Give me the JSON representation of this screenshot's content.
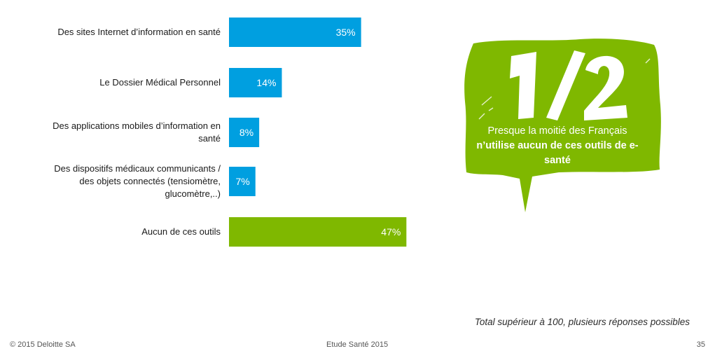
{
  "chart_data": {
    "type": "bar",
    "orientation": "horizontal",
    "categories": [
      "Des sites Internet d’information en santé",
      "Le Dossier Médical Personnel",
      "Des applications mobiles d’information en\nsanté",
      "Des dispositifs médicaux communicants /\ndes objets connectés (tensiomètre,\nglucomètre,..)",
      "Aucun de ces outils"
    ],
    "values": [
      35,
      14,
      8,
      7,
      47
    ],
    "value_labels": [
      "35%",
      "14%",
      "8%",
      "7%",
      "47%"
    ],
    "bar_colors": [
      "#009fe0",
      "#009fe0",
      "#009fe0",
      "#009fe0",
      "#7fb800"
    ],
    "xlim": [
      0,
      100
    ],
    "grid": false,
    "legend": "none"
  },
  "callout": {
    "big_text": "1/2",
    "line_normal": "Presque la moitié des Français",
    "line_bold": "n’utilise aucun de ces outils de e-santé",
    "color": "#7fb800"
  },
  "note": "Total supérieur à 100, plusieurs réponses possibles",
  "footer": {
    "left": "© 2015  Deloitte SA",
    "center": "Etude Santé 2015",
    "page": "35"
  }
}
